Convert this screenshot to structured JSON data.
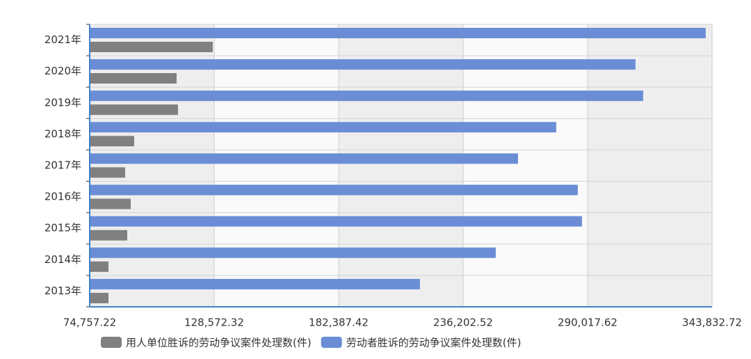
{
  "chart_data": {
    "type": "hbar",
    "categories": [
      "2021年",
      "2020年",
      "2019年",
      "2018年",
      "2017年",
      "2016年",
      "2015年",
      "2014年",
      "2013年"
    ],
    "series": [
      {
        "name": "用人单位胜诉的劳动争议案件处理数(件)",
        "color": "#808080",
        "values": [
          127963,
          112332,
          112933,
          93995,
          90088,
          92492,
          90989,
          82873,
          82873
        ]
      },
      {
        "name": "劳动者胜诉的劳动争议案件处理数(件)",
        "color": "#6a8dd6",
        "values": [
          341089,
          310728,
          314035,
          276460,
          259927,
          285778,
          287582,
          250307,
          217542
        ]
      }
    ],
    "xlim": [
      74757.22,
      343832.72
    ],
    "xticks": [
      {
        "value": 74757.22,
        "label": "74,757.22"
      },
      {
        "value": 128572.32,
        "label": "128,572.32"
      },
      {
        "value": 182387.42,
        "label": "182,387.42"
      },
      {
        "value": 236202.52,
        "label": "236,202.52"
      },
      {
        "value": 290017.62,
        "label": "290,017.62"
      },
      {
        "value": 343832.72,
        "label": "343,832.72"
      }
    ],
    "grid": true,
    "legend": "bottom"
  }
}
